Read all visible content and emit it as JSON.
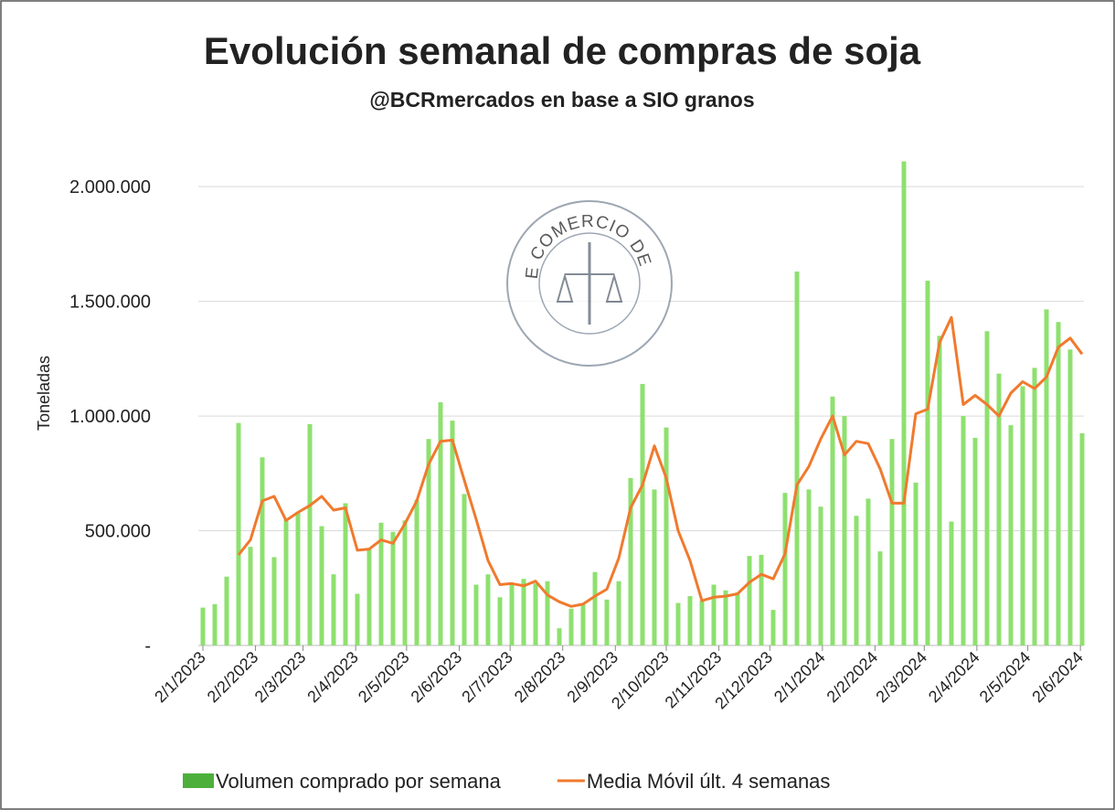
{
  "chart_data": {
    "type": "bar-line",
    "title": "Evolución semanal de compras de soja",
    "subtitle": "@BCRmercados en base a SIO granos",
    "y_label": "Toneladas",
    "watermark": "BOLSA DE COMERCIO DE ROSARIO",
    "x": [
      "2/1/2023",
      "9/1/2023",
      "16/1/2023",
      "23/1/2023",
      "30/1/2023",
      "6/2/2023",
      "13/2/2023",
      "20/2/2023",
      "27/2/2023",
      "6/3/2023",
      "13/3/2023",
      "20/3/2023",
      "27/3/2023",
      "3/4/2023",
      "10/4/2023",
      "17/4/2023",
      "24/4/2023",
      "1/5/2023",
      "8/5/2023",
      "15/5/2023",
      "22/5/2023",
      "29/5/2023",
      "5/6/2023",
      "12/6/2023",
      "19/6/2023",
      "26/6/2023",
      "3/7/2023",
      "10/7/2023",
      "17/7/2023",
      "24/7/2023",
      "31/7/2023",
      "7/8/2023",
      "14/8/2023",
      "21/8/2023",
      "28/8/2023",
      "4/9/2023",
      "11/9/2023",
      "18/9/2023",
      "25/9/2023",
      "2/10/2023",
      "9/10/2023",
      "16/10/2023",
      "23/10/2023",
      "30/10/2023",
      "6/11/2023",
      "13/11/2023",
      "20/11/2023",
      "27/11/2023",
      "4/12/2023",
      "11/12/2023",
      "18/12/2023",
      "25/12/2023",
      "1/1/2024",
      "8/1/2024",
      "15/1/2024",
      "22/1/2024",
      "29/1/2024",
      "5/2/2024",
      "12/2/2024",
      "19/2/2024",
      "26/2/2024",
      "4/3/2024",
      "11/3/2024",
      "18/3/2024",
      "25/3/2024",
      "1/4/2024",
      "8/4/2024",
      "15/4/2024",
      "22/4/2024",
      "29/4/2024",
      "6/5/2024",
      "13/5/2024",
      "20/5/2024",
      "27/5/2024",
      "3/6/2024"
    ],
    "series": [
      {
        "name": "Volumen comprado por semana",
        "kind": "bar",
        "color": "#8ee06f",
        "values": [
          165000,
          180000,
          300000,
          970000,
          430000,
          820000,
          385000,
          550000,
          580000,
          965000,
          520000,
          310000,
          620000,
          225000,
          420000,
          535000,
          495000,
          545000,
          635000,
          900000,
          1060000,
          980000,
          660000,
          265000,
          310000,
          210000,
          270000,
          290000,
          270000,
          280000,
          75000,
          160000,
          180000,
          320000,
          200000,
          280000,
          730000,
          1140000,
          680000,
          950000,
          185000,
          215000,
          195000,
          265000,
          240000,
          230000,
          390000,
          395000,
          155000,
          665000,
          1630000,
          680000,
          605000,
          1085000,
          1000000,
          565000,
          640000,
          410000,
          900000,
          2110000,
          710000,
          1590000,
          1350000,
          540000,
          1000000,
          905000,
          1370000,
          1185000,
          960000,
          1130000,
          1210000,
          1465000,
          1410000,
          1290000,
          925000
        ]
      },
      {
        "name": "Media Móvil últ. 4 semanas",
        "kind": "line",
        "color": "#f07a2e",
        "values": [
          null,
          null,
          null,
          395000,
          460000,
          630000,
          650000,
          545000,
          580000,
          610000,
          650000,
          590000,
          600000,
          415000,
          420000,
          460000,
          445000,
          530000,
          630000,
          790000,
          890000,
          895000,
          720000,
          550000,
          370000,
          265000,
          270000,
          260000,
          280000,
          220000,
          190000,
          170000,
          180000,
          215000,
          245000,
          380000,
          600000,
          700000,
          870000,
          730000,
          500000,
          370000,
          195000,
          210000,
          215000,
          225000,
          275000,
          310000,
          290000,
          400000,
          700000,
          780000,
          900000,
          1000000,
          830000,
          890000,
          880000,
          770000,
          620000,
          620000,
          1010000,
          1030000,
          1320000,
          1430000,
          1050000,
          1090000,
          1050000,
          1000000,
          1100000,
          1150000,
          1120000,
          1170000,
          1300000,
          1340000,
          1270000
        ]
      }
    ],
    "xlim": [
      "2/1/2023",
      "3/6/2024"
    ],
    "xticks": [
      "2/1/2023",
      "2/2/2023",
      "2/3/2023",
      "2/4/2023",
      "2/5/2023",
      "2/6/2023",
      "2/7/2023",
      "2/8/2023",
      "2/9/2023",
      "2/10/2023",
      "2/11/2023",
      "2/12/2023",
      "2/1/2024",
      "2/2/2024",
      "2/3/2024",
      "2/4/2024",
      "2/5/2024",
      "2/6/2024"
    ],
    "ylim": [
      0,
      2200000
    ],
    "yticks": [
      {
        "value": 0,
        "label": "-"
      },
      {
        "value": 500000,
        "label": "500.000"
      },
      {
        "value": 1000000,
        "label": "1.000.000"
      },
      {
        "value": 1500000,
        "label": "1.500.000"
      },
      {
        "value": 2000000,
        "label": "2.000.000"
      }
    ],
    "grid": true,
    "legend": "bottom"
  }
}
